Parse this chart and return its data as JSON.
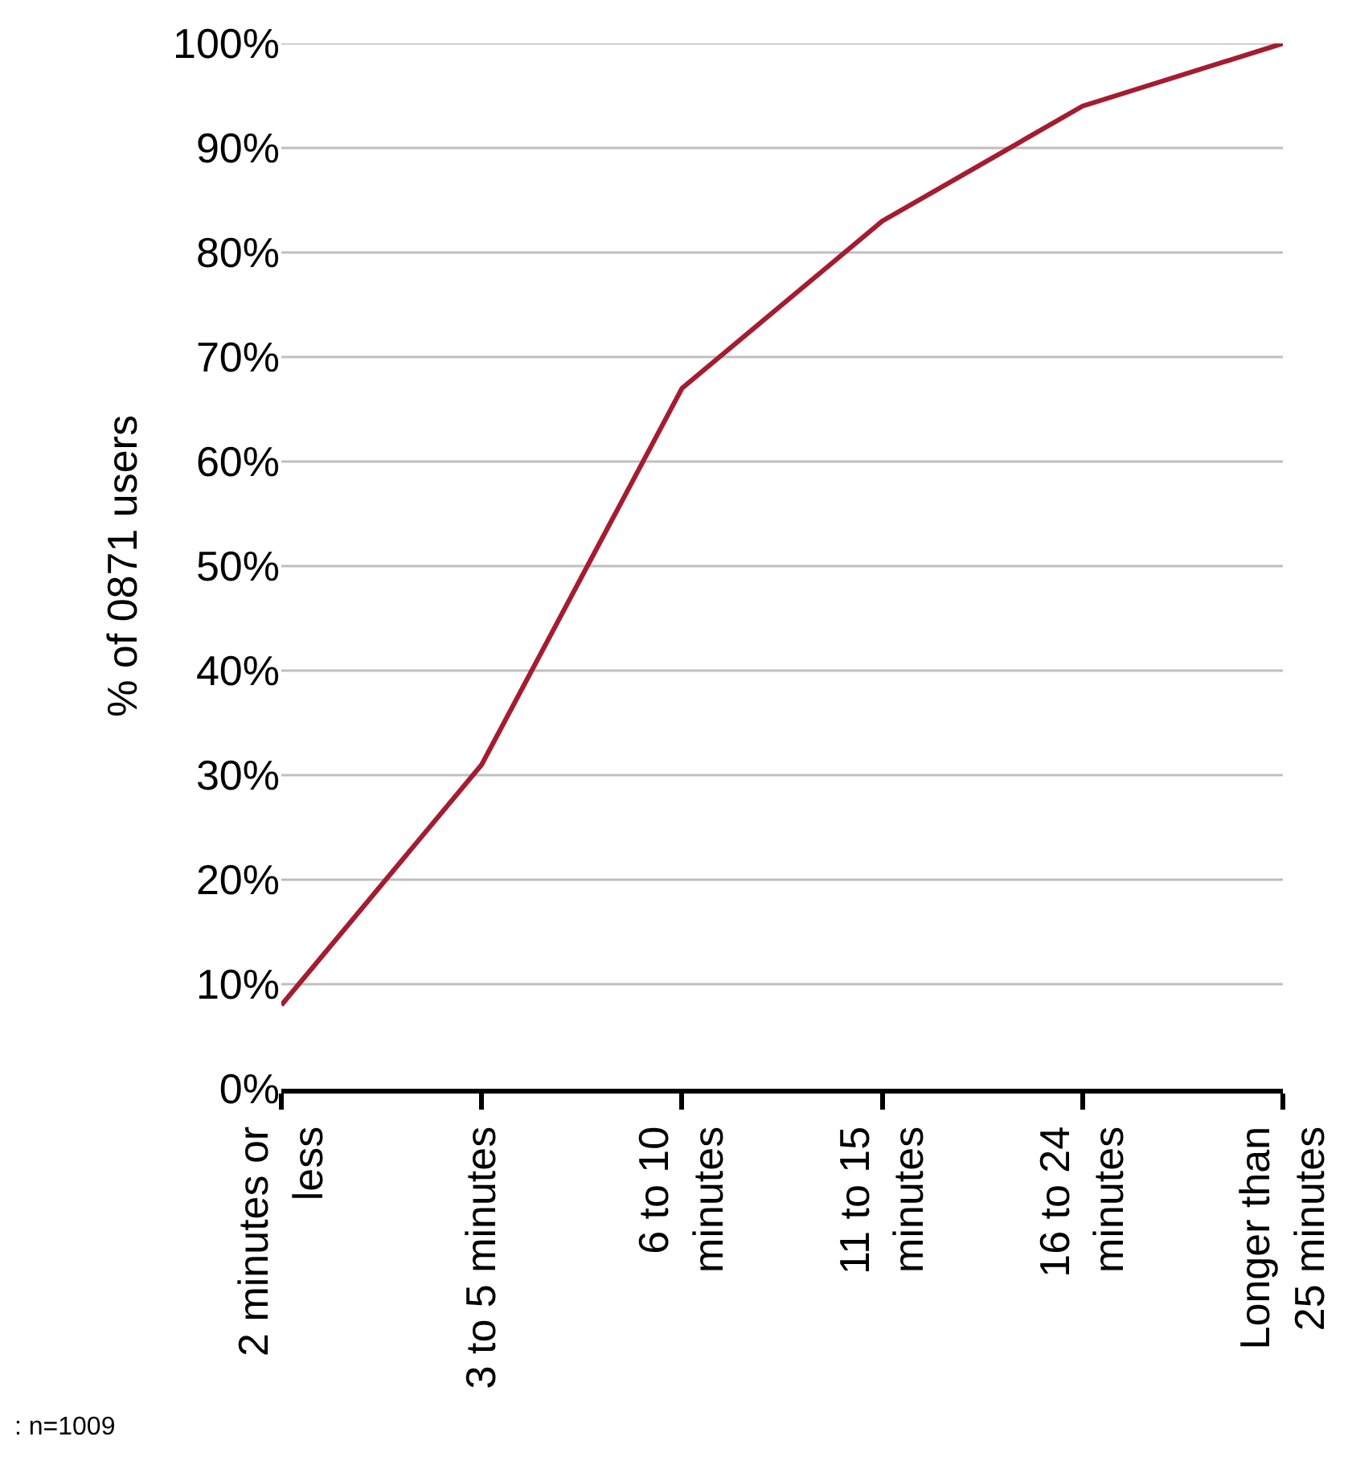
{
  "chart_data": {
    "type": "line",
    "ylabel": "% of 0871 users",
    "categories": [
      "2 minutes or\nless",
      "3 to 5 minutes",
      "6 to 10\nminutes",
      "11 to 15\nminutes",
      "16 to 24\nminutes",
      "Longer than\n25 minutes"
    ],
    "series": [
      {
        "color": "#a51c30",
        "values": [
          8,
          31,
          67,
          83,
          94,
          100
        ]
      }
    ],
    "ylim": [
      0,
      100
    ],
    "yticks": [
      {
        "value": 0,
        "label": "0%"
      },
      {
        "value": 10,
        "label": "10%"
      },
      {
        "value": 20,
        "label": "20%"
      },
      {
        "value": 30,
        "label": "30%"
      },
      {
        "value": 40,
        "label": "40%"
      },
      {
        "value": 50,
        "label": "50%"
      },
      {
        "value": 60,
        "label": "60%"
      },
      {
        "value": 70,
        "label": "70%"
      },
      {
        "value": 80,
        "label": "80%"
      },
      {
        "value": 90,
        "label": "90%"
      },
      {
        "value": 100,
        "label": "100%"
      }
    ],
    "grid": "y",
    "marker": "none",
    "line_style": "solid",
    "annotations": [
      ": n=1009"
    ]
  }
}
